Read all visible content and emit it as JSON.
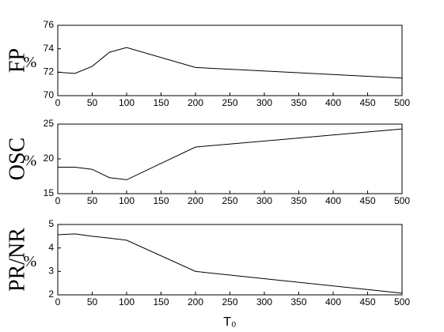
{
  "chart_data": [
    {
      "type": "line",
      "ylabel": "FP",
      "ylabel_unit": "%",
      "x": [
        0,
        25,
        50,
        75,
        100,
        200,
        500
      ],
      "series": [
        {
          "color": "#000000",
          "values": [
            72.0,
            71.9,
            72.5,
            73.7,
            74.1,
            72.4,
            71.5
          ]
        }
      ],
      "xlim": [
        0,
        500
      ],
      "xticks": [
        0,
        50,
        100,
        150,
        200,
        250,
        300,
        350,
        400,
        450,
        500
      ],
      "ylim": [
        70,
        76
      ],
      "yticks": [
        70,
        72,
        74,
        76
      ]
    },
    {
      "type": "line",
      "ylabel": "OSC",
      "ylabel_unit": "%",
      "x": [
        0,
        25,
        50,
        75,
        100,
        200,
        500
      ],
      "series": [
        {
          "color": "#000000",
          "values": [
            18.8,
            18.8,
            18.5,
            17.3,
            17.0,
            21.7,
            24.3
          ]
        }
      ],
      "xlim": [
        0,
        500
      ],
      "xticks": [
        0,
        50,
        100,
        150,
        200,
        250,
        300,
        350,
        400,
        450,
        500
      ],
      "ylim": [
        15,
        25
      ],
      "yticks": [
        15,
        20,
        25
      ]
    },
    {
      "type": "line",
      "ylabel": "PR/NR",
      "ylabel_unit": "%",
      "xlabel": "T₀",
      "x": [
        0,
        25,
        50,
        75,
        100,
        200,
        500
      ],
      "series": [
        {
          "color": "#000000",
          "values": [
            4.56,
            4.6,
            4.5,
            4.42,
            4.33,
            3.0,
            2.07
          ]
        }
      ],
      "xlim": [
        0,
        500
      ],
      "xticks": [
        0,
        50,
        100,
        150,
        200,
        250,
        300,
        350,
        400,
        450,
        500
      ],
      "ylim": [
        2,
        5
      ],
      "yticks": [
        2,
        3,
        4,
        5
      ]
    }
  ]
}
